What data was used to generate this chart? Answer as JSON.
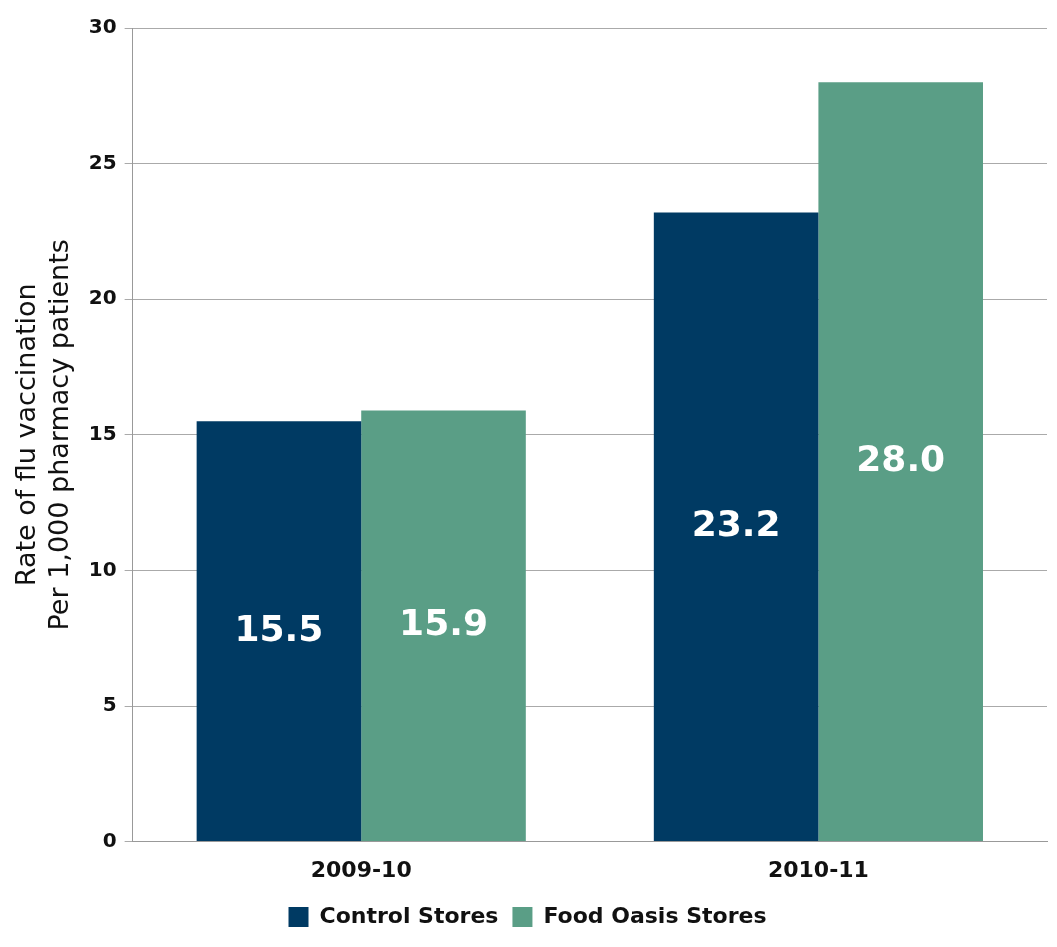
{
  "chart_data": {
    "type": "bar",
    "ylabel": "Rate of flu vaccination\nPer 1,000 pharmacy patients",
    "categories": [
      "2009-10",
      "2010-11"
    ],
    "series": [
      {
        "name": "Control Stores",
        "color": "#003a63",
        "values": [
          15.5,
          23.2
        ],
        "value_labels": [
          "15.5",
          "23.2"
        ]
      },
      {
        "name": "Food Oasis Stores",
        "color": "#5a9e86",
        "values": [
          15.9,
          28
        ],
        "value_labels": [
          "15.9",
          "28.0"
        ]
      }
    ],
    "ylim": [
      0,
      30
    ],
    "yticks": [
      0,
      5,
      10,
      15,
      20,
      25,
      30
    ],
    "grid": "y",
    "legend": "bottom"
  }
}
